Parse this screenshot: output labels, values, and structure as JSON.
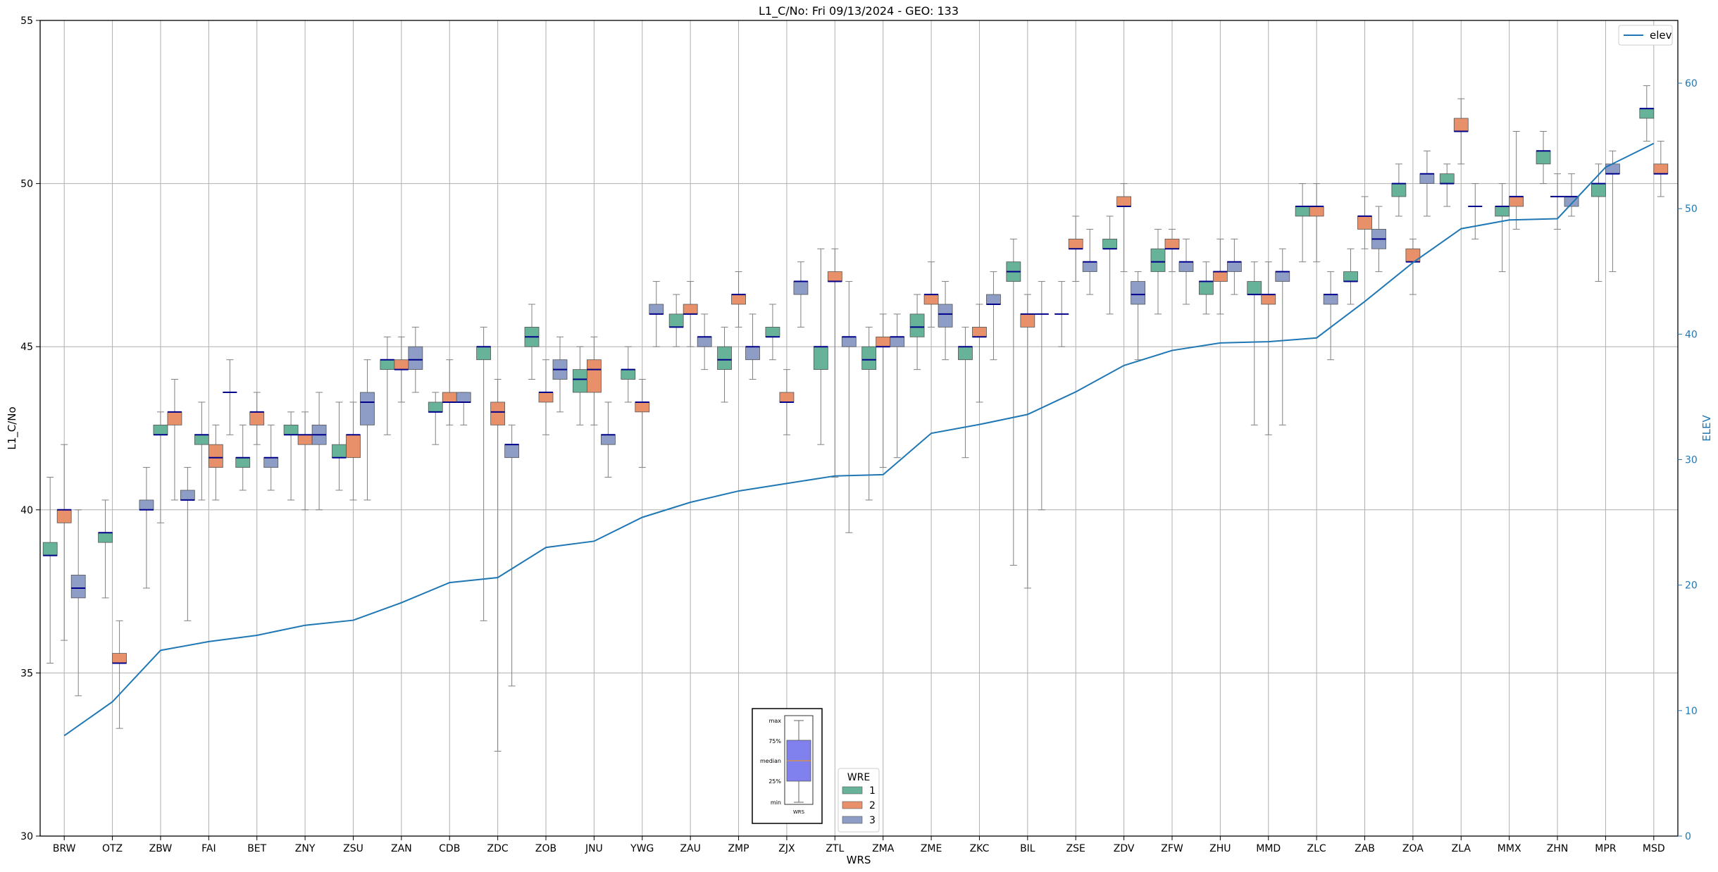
{
  "chart_data": {
    "type": "box",
    "title": "L1_C/No: Fri 09/13/2024 - GEO: 133",
    "xlabel": "WRS",
    "ylabel": "L1_C/No",
    "y2label": "ELEV",
    "ylim": [
      30,
      55
    ],
    "y2lim": [
      0,
      65
    ],
    "yticks": [
      "30",
      "35",
      "40",
      "45",
      "50",
      "55"
    ],
    "y2ticks": [
      "0",
      "10",
      "20",
      "30",
      "40",
      "50",
      "60"
    ],
    "grid": true,
    "colors": {
      "1": "#66b399",
      "2": "#e8906a",
      "3": "#8d9dc6",
      "median": "#00008b",
      "elev": "#1f77b4",
      "whisker": "#808080"
    },
    "legend_line": {
      "label": "elev",
      "placement": "top-right"
    },
    "legend_wre": {
      "title": "WRE",
      "entries": [
        "1",
        "2",
        "3"
      ],
      "placement": "bottom-center"
    },
    "key_box": {
      "labels": [
        "max",
        "75%",
        "median",
        "25%",
        "min"
      ],
      "xlabel": "WRS"
    },
    "categories": [
      "BRW",
      "OTZ",
      "ZBW",
      "FAI",
      "BET",
      "ZNY",
      "ZSU",
      "ZAN",
      "CDB",
      "ZDC",
      "ZOB",
      "JNU",
      "YWG",
      "ZAU",
      "ZMP",
      "ZJX",
      "ZTL",
      "ZMA",
      "ZME",
      "ZKC",
      "BIL",
      "ZSE",
      "ZDV",
      "ZFW",
      "ZHU",
      "MMD",
      "ZLC",
      "ZAB",
      "ZOA",
      "ZLA",
      "MMX",
      "ZHN",
      "MPR",
      "MSD"
    ],
    "elev": [
      8,
      10.7,
      14.8,
      15.5,
      16,
      16.8,
      17.2,
      18.6,
      20.2,
      20.6,
      23,
      23.5,
      25.4,
      26.6,
      27.5,
      28.1,
      28.7,
      28.8,
      32.1,
      32.8,
      33.6,
      35.4,
      37.5,
      38.7,
      39.3,
      39.4,
      39.7,
      42.6,
      45.7,
      48.4,
      49.1,
      49.2,
      53.3,
      55.2
    ],
    "boxes": [
      [
        {
          "wre": "1",
          "min": 35.3,
          "q1": 38.6,
          "median": 38.6,
          "q3": 39,
          "max": 41
        },
        {
          "wre": "2",
          "min": 36,
          "q1": 39.6,
          "median": 40,
          "q3": 40,
          "max": 42
        },
        {
          "wre": "3",
          "min": 34.3,
          "q1": 37.3,
          "median": 37.6,
          "q3": 38,
          "max": 40
        }
      ],
      [
        {
          "wre": "1",
          "min": 37.3,
          "q1": 39,
          "median": 39.3,
          "q3": 39.3,
          "max": 40.3
        },
        {
          "wre": "2",
          "min": 33.3,
          "q1": 35.3,
          "median": 35.3,
          "q3": 35.6,
          "max": 36.6
        }
      ],
      [
        {
          "wre": "3",
          "min": 37.6,
          "q1": 40,
          "median": 40,
          "q3": 40.3,
          "max": 41.3
        },
        {
          "wre": "1",
          "min": 39.6,
          "q1": 42.3,
          "median": 42.3,
          "q3": 42.6,
          "max": 43
        },
        {
          "wre": "2",
          "min": 40.3,
          "q1": 42.6,
          "median": 43,
          "q3": 43,
          "max": 44
        }
      ],
      [
        {
          "wre": "3",
          "min": 36.6,
          "q1": 40.3,
          "median": 40.3,
          "q3": 40.6,
          "max": 41.3
        },
        {
          "wre": "1",
          "min": 40.3,
          "q1": 42,
          "median": 42.3,
          "q3": 42.3,
          "max": 43.3
        },
        {
          "wre": "2",
          "min": 40.3,
          "q1": 41.3,
          "median": 41.6,
          "q3": 42,
          "max": 42.6
        },
        {
          "wre": "3",
          "min": 42.3,
          "q1": 43.6,
          "median": 43.6,
          "q3": 43.6,
          "max": 44.6
        }
      ],
      [
        {
          "wre": "1",
          "min": 40.6,
          "q1": 41.3,
          "median": 41.6,
          "q3": 41.6,
          "max": 42.6
        },
        {
          "wre": "2",
          "min": 42,
          "q1": 42.6,
          "median": 43,
          "q3": 43,
          "max": 43.6
        },
        {
          "wre": "3",
          "min": 40.6,
          "q1": 41.3,
          "median": 41.6,
          "q3": 41.6,
          "max": 42.6
        }
      ],
      [
        {
          "wre": "1",
          "min": 40.3,
          "q1": 42.3,
          "median": 42.3,
          "q3": 42.6,
          "max": 43
        },
        {
          "wre": "2",
          "min": 40,
          "q1": 42,
          "median": 42.3,
          "q3": 42.3,
          "max": 43
        },
        {
          "wre": "3",
          "min": 40,
          "q1": 42,
          "median": 42.3,
          "q3": 42.6,
          "max": 43.6
        }
      ],
      [
        {
          "wre": "1",
          "min": 40.6,
          "q1": 41.6,
          "median": 41.6,
          "q3": 42,
          "max": 43.3
        },
        {
          "wre": "2",
          "min": 40.3,
          "q1": 41.6,
          "median": 42.3,
          "q3": 42.3,
          "max": 43.3
        },
        {
          "wre": "3",
          "min": 40.3,
          "q1": 42.6,
          "median": 43.3,
          "q3": 43.6,
          "max": 44.6
        }
      ],
      [
        {
          "wre": "1",
          "min": 42.3,
          "q1": 44.3,
          "median": 44.6,
          "q3": 44.6,
          "max": 45.3
        },
        {
          "wre": "2",
          "min": 43.3,
          "q1": 44.3,
          "median": 44.3,
          "q3": 44.6,
          "max": 45.3
        },
        {
          "wre": "3",
          "min": 43.6,
          "q1": 44.3,
          "median": 44.6,
          "q3": 45,
          "max": 45.6
        }
      ],
      [
        {
          "wre": "1",
          "min": 42,
          "q1": 43,
          "median": 43,
          "q3": 43.3,
          "max": 43.6
        },
        {
          "wre": "2",
          "min": 42.6,
          "q1": 43.3,
          "median": 43.3,
          "q3": 43.6,
          "max": 44.6
        },
        {
          "wre": "3",
          "min": 42.6,
          "q1": 43.3,
          "median": 43.3,
          "q3": 43.6,
          "max": 43.6
        }
      ],
      [
        {
          "wre": "1",
          "min": 36.6,
          "q1": 44.6,
          "median": 45,
          "q3": 45,
          "max": 45.6
        },
        {
          "wre": "2",
          "min": 32.6,
          "q1": 42.6,
          "median": 43,
          "q3": 43.3,
          "max": 44
        },
        {
          "wre": "3",
          "min": 34.6,
          "q1": 41.6,
          "median": 42,
          "q3": 42,
          "max": 42.6
        }
      ],
      [
        {
          "wre": "1",
          "min": 44,
          "q1": 45,
          "median": 45.3,
          "q3": 45.6,
          "max": 46.3
        },
        {
          "wre": "2",
          "min": 42.3,
          "q1": 43.3,
          "median": 43.6,
          "q3": 43.6,
          "max": 44.6
        },
        {
          "wre": "3",
          "min": 43,
          "q1": 44,
          "median": 44.3,
          "q3": 44.6,
          "max": 45.3
        }
      ],
      [
        {
          "wre": "1",
          "min": 42.6,
          "q1": 43.6,
          "median": 44,
          "q3": 44.3,
          "max": 45
        },
        {
          "wre": "2",
          "min": 42.6,
          "q1": 43.6,
          "median": 44.3,
          "q3": 44.6,
          "max": 45.3
        },
        {
          "wre": "3",
          "min": 41,
          "q1": 42,
          "median": 42.3,
          "q3": 42.3,
          "max": 43.3
        }
      ],
      [
        {
          "wre": "1",
          "min": 43.3,
          "q1": 44,
          "median": 44.3,
          "q3": 44.3,
          "max": 45
        },
        {
          "wre": "2",
          "min": 41.3,
          "q1": 43,
          "median": 43.3,
          "q3": 43.3,
          "max": 44
        },
        {
          "wre": "3",
          "min": 45,
          "q1": 46,
          "median": 46,
          "q3": 46.3,
          "max": 47
        }
      ],
      [
        {
          "wre": "1",
          "min": 45,
          "q1": 45.6,
          "median": 45.6,
          "q3": 46,
          "max": 46.6
        },
        {
          "wre": "2",
          "min": 45,
          "q1": 46,
          "median": 46,
          "q3": 46.3,
          "max": 47
        },
        {
          "wre": "3",
          "min": 44.3,
          "q1": 45,
          "median": 45.3,
          "q3": 45.3,
          "max": 46
        }
      ],
      [
        {
          "wre": "1",
          "min": 43.3,
          "q1": 44.3,
          "median": 44.6,
          "q3": 45,
          "max": 45.6
        },
        {
          "wre": "2",
          "min": 45.6,
          "q1": 46.3,
          "median": 46.6,
          "q3": 46.6,
          "max": 47.3
        },
        {
          "wre": "3",
          "min": 44,
          "q1": 44.6,
          "median": 45,
          "q3": 45,
          "max": 46
        }
      ],
      [
        {
          "wre": "1",
          "min": 44.6,
          "q1": 45.3,
          "median": 45.3,
          "q3": 45.6,
          "max": 46.3
        },
        {
          "wre": "2",
          "min": 42.3,
          "q1": 43.3,
          "median": 43.3,
          "q3": 43.6,
          "max": 44.3
        },
        {
          "wre": "3",
          "min": 45.6,
          "q1": 46.6,
          "median": 47,
          "q3": 47,
          "max": 47.6
        }
      ],
      [
        {
          "wre": "1",
          "min": 42,
          "q1": 44.3,
          "median": 45,
          "q3": 45,
          "max": 48
        },
        {
          "wre": "2",
          "min": 41,
          "q1": 47,
          "median": 47,
          "q3": 47.3,
          "max": 48
        },
        {
          "wre": "3",
          "min": 39.3,
          "q1": 45,
          "median": 45.3,
          "q3": 45.3,
          "max": 47
        }
      ],
      [
        {
          "wre": "1",
          "min": 40.3,
          "q1": 44.3,
          "median": 44.6,
          "q3": 45,
          "max": 45.6
        },
        {
          "wre": "2",
          "min": 41.3,
          "q1": 45,
          "median": 45,
          "q3": 45.3,
          "max": 46
        },
        {
          "wre": "3",
          "min": 41.6,
          "q1": 45,
          "median": 45.3,
          "q3": 45.3,
          "max": 46
        }
      ],
      [
        {
          "wre": "1",
          "min": 44.3,
          "q1": 45.3,
          "median": 45.6,
          "q3": 46,
          "max": 46.6
        },
        {
          "wre": "2",
          "min": 45.6,
          "q1": 46.3,
          "median": 46.6,
          "q3": 46.6,
          "max": 47.6
        },
        {
          "wre": "3",
          "min": 44.6,
          "q1": 45.6,
          "median": 46,
          "q3": 46.3,
          "max": 47
        }
      ],
      [
        {
          "wre": "1",
          "min": 41.6,
          "q1": 44.6,
          "median": 45,
          "q3": 45,
          "max": 45.6
        },
        {
          "wre": "2",
          "min": 43.3,
          "q1": 45.3,
          "median": 45.3,
          "q3": 45.6,
          "max": 46.3
        },
        {
          "wre": "3",
          "min": 44.6,
          "q1": 46.3,
          "median": 46.3,
          "q3": 46.6,
          "max": 47.3
        }
      ],
      [
        {
          "wre": "1",
          "min": 38.3,
          "q1": 47,
          "median": 47.3,
          "q3": 47.6,
          "max": 48.3
        },
        {
          "wre": "2",
          "min": 37.6,
          "q1": 45.6,
          "median": 46,
          "q3": 46,
          "max": 46.6
        },
        {
          "wre": "3",
          "min": 40,
          "q1": 46,
          "median": 46,
          "q3": 46,
          "max": 47
        }
      ],
      [
        {
          "wre": "1",
          "min": 45,
          "q1": 46,
          "median": 46,
          "q3": 46,
          "max": 47
        },
        {
          "wre": "2",
          "min": 47,
          "q1": 48,
          "median": 48,
          "q3": 48.3,
          "max": 49
        },
        {
          "wre": "3",
          "min": 46.6,
          "q1": 47.3,
          "median": 47.6,
          "q3": 47.6,
          "max": 48.6
        }
      ],
      [
        {
          "wre": "1",
          "min": 46,
          "q1": 48,
          "median": 48,
          "q3": 48.3,
          "max": 49
        },
        {
          "wre": "2",
          "min": 47.3,
          "q1": 49.3,
          "median": 49.3,
          "q3": 49.6,
          "max": 50
        },
        {
          "wre": "3",
          "min": 44.6,
          "q1": 46.3,
          "median": 46.6,
          "q3": 47,
          "max": 47.3
        }
      ],
      [
        {
          "wre": "1",
          "min": 46,
          "q1": 47.3,
          "median": 47.6,
          "q3": 48,
          "max": 48.6
        },
        {
          "wre": "2",
          "min": 47.3,
          "q1": 48,
          "median": 48,
          "q3": 48.3,
          "max": 48.6
        },
        {
          "wre": "3",
          "min": 46.3,
          "q1": 47.3,
          "median": 47.6,
          "q3": 47.6,
          "max": 48.3
        }
      ],
      [
        {
          "wre": "1",
          "min": 46,
          "q1": 46.6,
          "median": 47,
          "q3": 47,
          "max": 47.6
        },
        {
          "wre": "2",
          "min": 46,
          "q1": 47,
          "median": 47.3,
          "q3": 47.3,
          "max": 48.3
        },
        {
          "wre": "3",
          "min": 46.6,
          "q1": 47.3,
          "median": 47.6,
          "q3": 47.6,
          "max": 48.3
        }
      ],
      [
        {
          "wre": "1",
          "min": 42.6,
          "q1": 46.6,
          "median": 46.6,
          "q3": 47,
          "max": 47.6
        },
        {
          "wre": "2",
          "min": 42.3,
          "q1": 46.3,
          "median": 46.6,
          "q3": 46.6,
          "max": 47.6
        },
        {
          "wre": "3",
          "min": 42.6,
          "q1": 47,
          "median": 47.3,
          "q3": 47.3,
          "max": 48
        }
      ],
      [
        {
          "wre": "1",
          "min": 47.6,
          "q1": 49,
          "median": 49.3,
          "q3": 49.3,
          "max": 50
        },
        {
          "wre": "2",
          "min": 47.6,
          "q1": 49,
          "median": 49.3,
          "q3": 49.3,
          "max": 50
        },
        {
          "wre": "3",
          "min": 44.6,
          "q1": 46.3,
          "median": 46.6,
          "q3": 46.6,
          "max": 47.3
        }
      ],
      [
        {
          "wre": "1",
          "min": 46.3,
          "q1": 47,
          "median": 47,
          "q3": 47.3,
          "max": 48
        },
        {
          "wre": "2",
          "min": 48,
          "q1": 48.6,
          "median": 49,
          "q3": 49,
          "max": 49.6
        },
        {
          "wre": "3",
          "min": 47.3,
          "q1": 48,
          "median": 48.3,
          "q3": 48.6,
          "max": 49.3
        }
      ],
      [
        {
          "wre": "1",
          "min": 49,
          "q1": 49.6,
          "median": 50,
          "q3": 50,
          "max": 50.6
        },
        {
          "wre": "2",
          "min": 46.6,
          "q1": 47.6,
          "median": 47.6,
          "q3": 48,
          "max": 48.3
        },
        {
          "wre": "3",
          "min": 49,
          "q1": 50,
          "median": 50.3,
          "q3": 50.3,
          "max": 51
        }
      ],
      [
        {
          "wre": "1",
          "min": 49.3,
          "q1": 50,
          "median": 50,
          "q3": 50.3,
          "max": 50.6
        },
        {
          "wre": "2",
          "min": 50.6,
          "q1": 51.6,
          "median": 51.6,
          "q3": 52,
          "max": 52.6
        },
        {
          "wre": "3",
          "min": 48.3,
          "q1": 49.3,
          "median": 49.3,
          "q3": 49.3,
          "max": 50
        }
      ],
      [
        {
          "wre": "1",
          "min": 47.3,
          "q1": 49,
          "median": 49.3,
          "q3": 49.3,
          "max": 50
        },
        {
          "wre": "2",
          "min": 48.6,
          "q1": 49.3,
          "median": 49.6,
          "q3": 49.6,
          "max": 51.6
        }
      ],
      [
        {
          "wre": "1",
          "min": 50,
          "q1": 50.6,
          "median": 51,
          "q3": 51,
          "max": 51.6
        },
        {
          "wre": "2",
          "min": 48.6,
          "q1": 49.6,
          "median": 49.6,
          "q3": 49.6,
          "max": 50.3
        },
        {
          "wre": "3",
          "min": 49,
          "q1": 49.3,
          "median": 49.6,
          "q3": 49.6,
          "max": 50.3
        }
      ],
      [
        {
          "wre": "1",
          "min": 47,
          "q1": 49.6,
          "median": 50,
          "q3": 50,
          "max": 50.6
        },
        {
          "wre": "3",
          "min": 47.3,
          "q1": 50.3,
          "median": 50.3,
          "q3": 50.6,
          "max": 51
        }
      ],
      [
        {
          "wre": "1",
          "min": 51.3,
          "q1": 52,
          "median": 52.3,
          "q3": 52.3,
          "max": 53
        },
        {
          "wre": "2",
          "min": 49.6,
          "q1": 50.3,
          "median": 50.3,
          "q3": 50.6,
          "max": 51.3
        }
      ]
    ]
  }
}
